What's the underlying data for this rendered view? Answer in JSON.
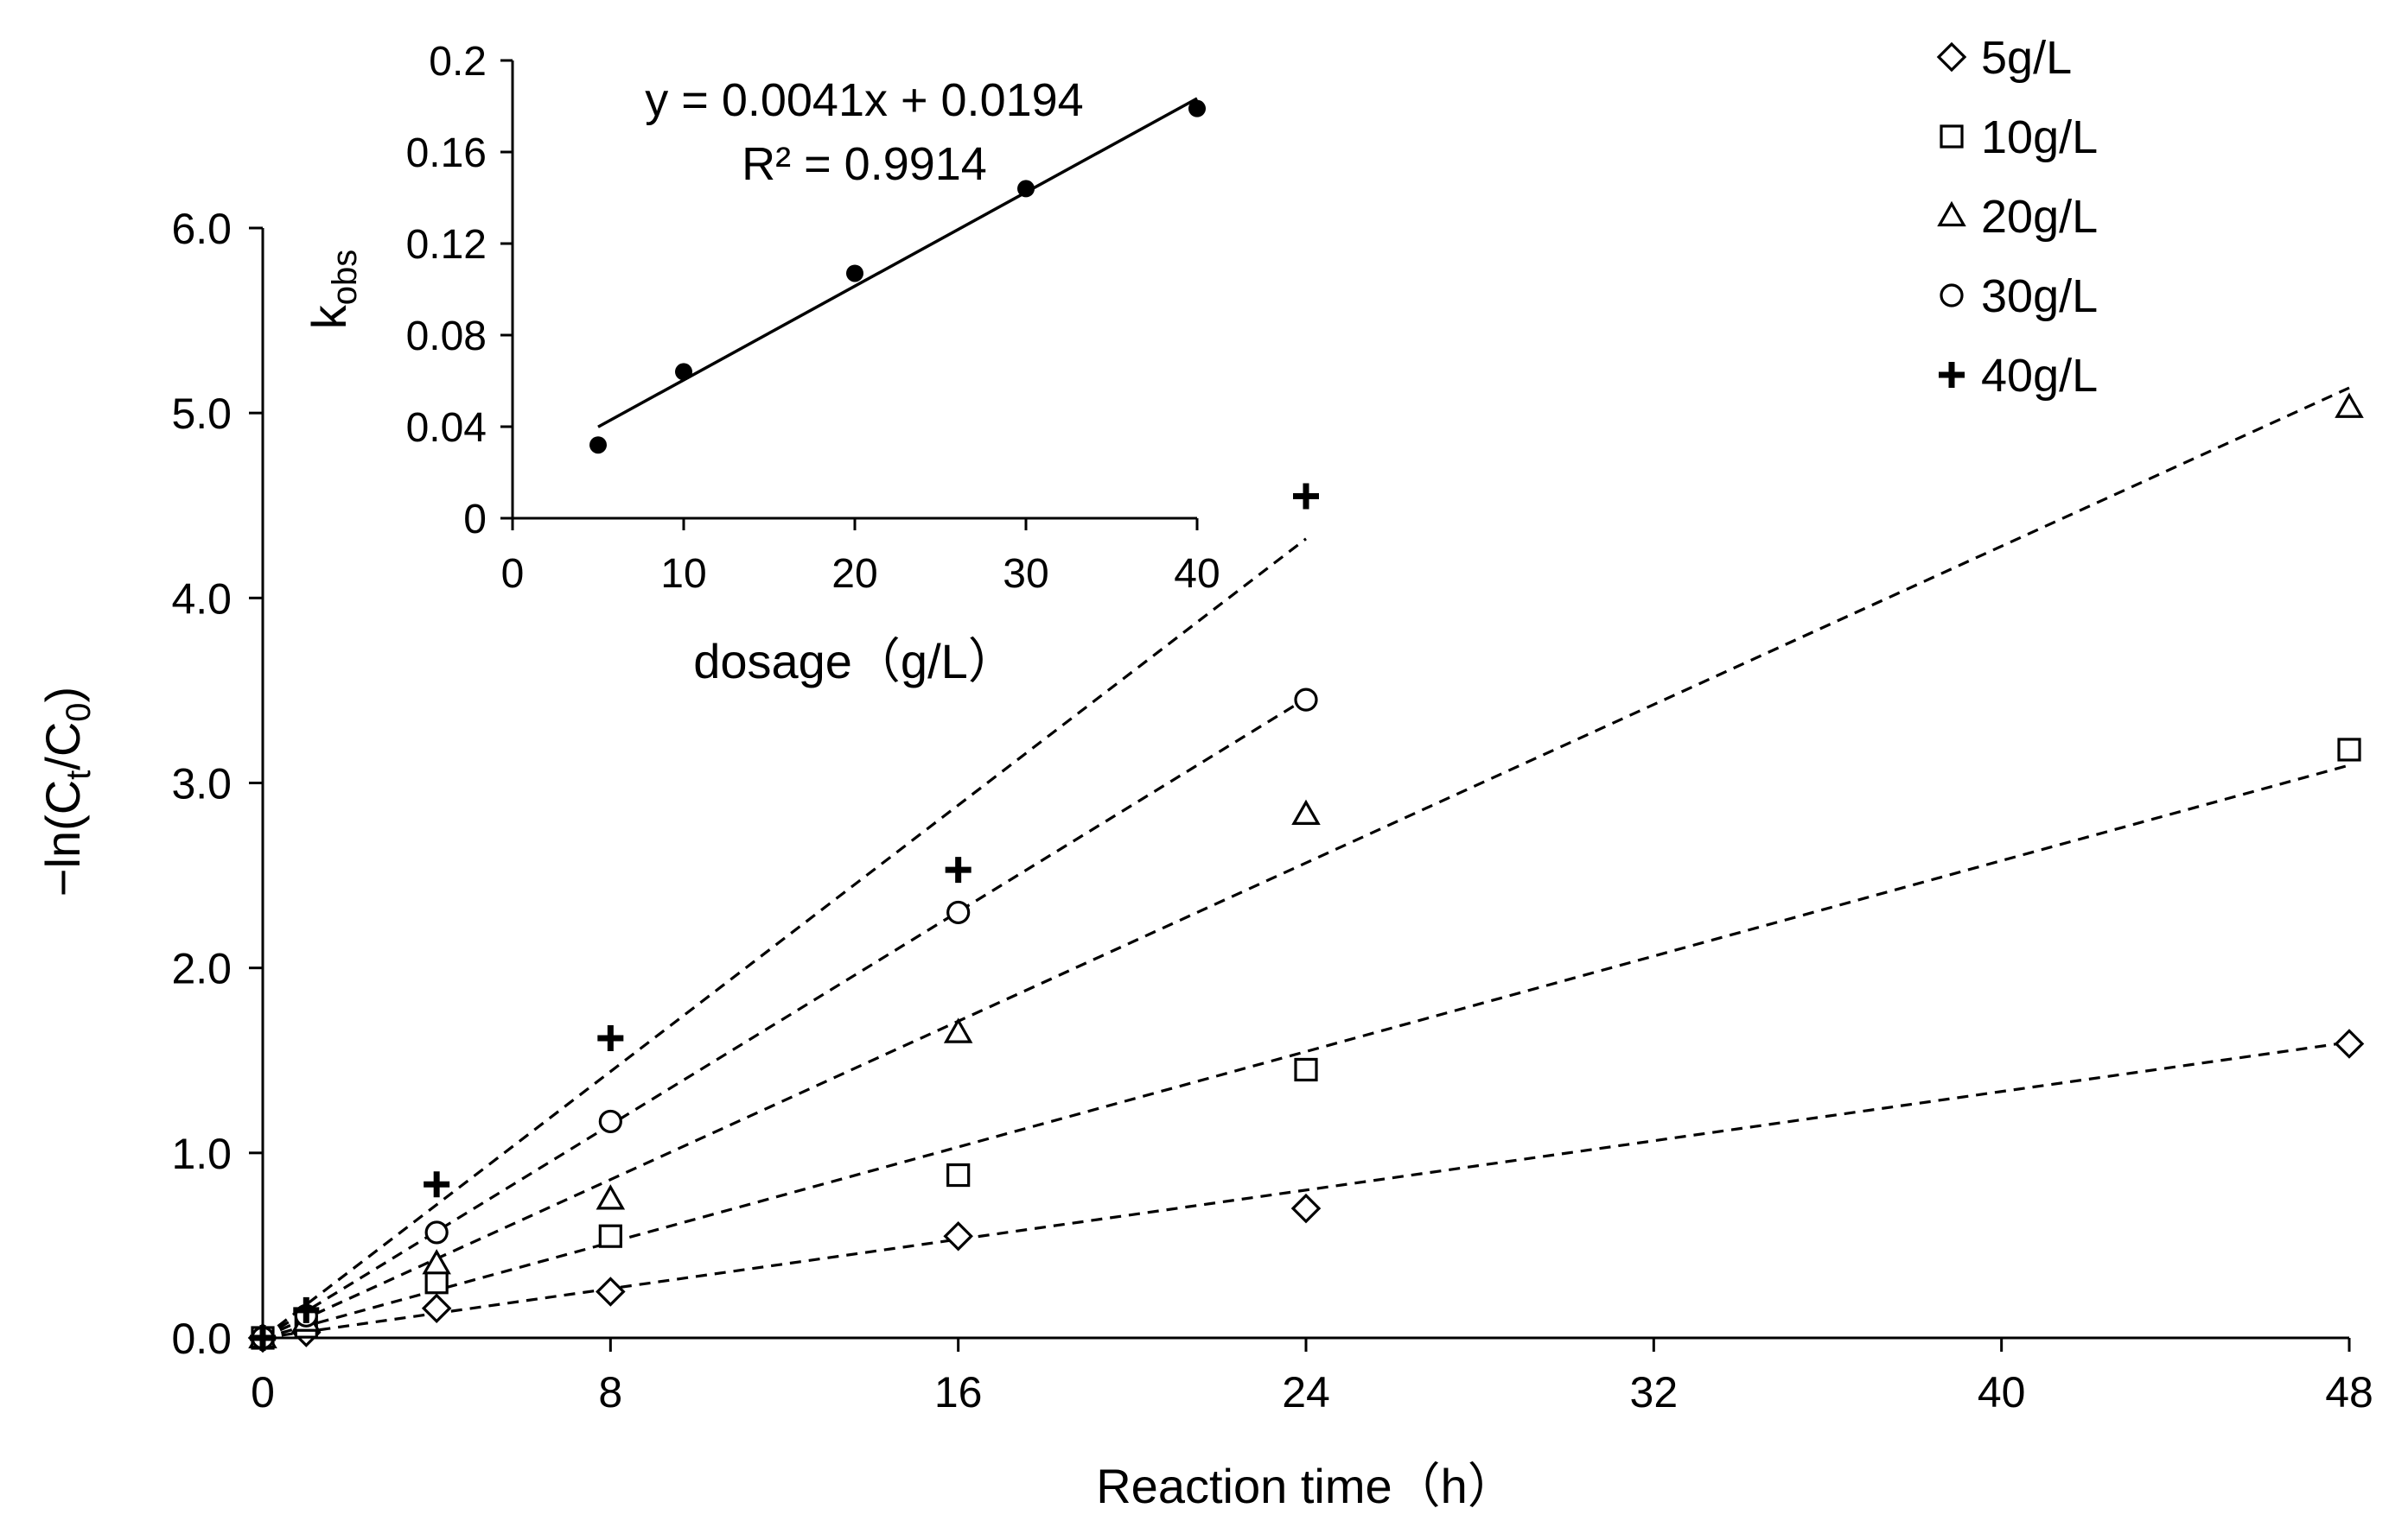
{
  "chart_data": [
    {
      "type": "scatter",
      "xlabel": "Reaction time（h）",
      "ylabel": "−ln(Ct/C0)",
      "ylabel_parts": {
        "prefix": "−ln(C",
        "sub1": "t",
        "mid": "/C",
        "sub2": "0",
        "suffix": ")"
      },
      "xlim": [
        0,
        48
      ],
      "ylim": [
        0,
        6
      ],
      "xticks": [
        0,
        8,
        16,
        24,
        32,
        40,
        48
      ],
      "xtick_labels": [
        "0",
        "8",
        "16",
        "24",
        "32",
        "40",
        "48"
      ],
      "yticks": [
        0,
        1,
        2,
        3,
        4,
        5,
        6
      ],
      "ytick_labels": [
        "0.0",
        "1.0",
        "2.0",
        "3.0",
        "4.0",
        "5.0",
        "6.0"
      ],
      "legend_position": "top-right",
      "series": [
        {
          "name": "5g/L",
          "marker": "diamond",
          "x": [
            0,
            1,
            4,
            8,
            16,
            24,
            48
          ],
          "y": [
            0,
            0.03,
            0.16,
            0.25,
            0.55,
            0.7,
            1.59
          ],
          "fit_slope": 0.0333,
          "fit_xmax": 48
        },
        {
          "name": "10g/L",
          "marker": "square",
          "x": [
            0,
            1,
            4,
            8,
            16,
            24,
            48
          ],
          "y": [
            0,
            0.06,
            0.3,
            0.55,
            0.88,
            1.45,
            3.18
          ],
          "fit_slope": 0.0645,
          "fit_xmax": 48
        },
        {
          "name": "20g/L",
          "marker": "triangle",
          "x": [
            0,
            1,
            4,
            8,
            16,
            24,
            48
          ],
          "y": [
            0,
            0.09,
            0.4,
            0.75,
            1.65,
            2.83,
            5.03
          ],
          "fit_slope": 0.107,
          "fit_xmax": 48
        },
        {
          "name": "30g/L",
          "marker": "circle",
          "x": [
            0,
            1,
            4,
            8,
            16,
            24
          ],
          "y": [
            0,
            0.12,
            0.57,
            1.17,
            2.3,
            3.45
          ],
          "fit_slope": 0.144,
          "fit_xmax": 24
        },
        {
          "name": "40g/L",
          "marker": "plus",
          "x": [
            0,
            1,
            4,
            8,
            16,
            24
          ],
          "y": [
            0,
            0.15,
            0.83,
            1.62,
            2.53,
            4.55
          ],
          "fit_slope": 0.18,
          "fit_xmax": 24
        }
      ]
    },
    {
      "type": "scatter",
      "xlabel": "dosage（g/L）",
      "ylabel": "kobs",
      "ylabel_parts": {
        "main": "k",
        "sub": "obs"
      },
      "xlim": [
        0,
        40
      ],
      "ylim": [
        0,
        0.2
      ],
      "xticks": [
        0,
        10,
        20,
        30,
        40
      ],
      "xtick_labels": [
        "0",
        "10",
        "20",
        "30",
        "40"
      ],
      "yticks": [
        0,
        0.04,
        0.08,
        0.12,
        0.16,
        0.2
      ],
      "ytick_labels": [
        "0",
        "0.04",
        "0.08",
        "0.12",
        "0.16",
        "0.2"
      ],
      "x": [
        5,
        10,
        20,
        30,
        40
      ],
      "y": [
        0.032,
        0.064,
        0.107,
        0.144,
        0.179
      ],
      "trendline": {
        "slope": 0.0041,
        "intercept": 0.0194,
        "x_range": [
          5,
          40
        ]
      },
      "annotations": [
        "y = 0.0041x + 0.0194",
        "R² = 0.9914"
      ]
    }
  ]
}
